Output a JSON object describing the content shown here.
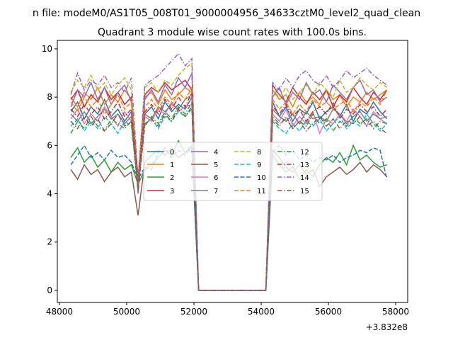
{
  "chart_data": {
    "type": "line",
    "suptitle": "n file: modeM0/AS1T05_008T01_9000004956_34633cztM0_level2_quad_clean",
    "title": "Quadrant 3 module wise count rates with 100.0s bins.",
    "xlabel": "",
    "ylabel": "",
    "x_offset_label": "+3.832e8",
    "xlim": [
      47937,
      58358
    ],
    "ylim": [
      -0.5,
      10.35
    ],
    "xticks": [
      48000,
      50000,
      52000,
      54000,
      56000,
      58000
    ],
    "yticks": [
      0,
      2,
      4,
      6,
      8,
      10
    ],
    "xtick_labels": [
      "48000",
      "50000",
      "52000",
      "54000",
      "56000",
      "58000"
    ],
    "ytick_labels": [
      "0",
      "2",
      "4",
      "6",
      "8",
      "10"
    ],
    "grid": false,
    "legend_placement": "center",
    "x_start": 48340,
    "x_step": 200,
    "series": [
      {
        "name": "0",
        "color": "#1f77b4",
        "style": "solid",
        "values": [
          7.4,
          7.8,
          7.1,
          7.6,
          7.3,
          7.9,
          7.2,
          7.5,
          7.0,
          7.4,
          4.2,
          7.3,
          7.6,
          7.1,
          7.8,
          7.4,
          7.7,
          7.5,
          8.0,
          0,
          0,
          0,
          0,
          0,
          0,
          0,
          0,
          0,
          0,
          0,
          7.8,
          7.2,
          7.6,
          7.0,
          7.5,
          7.3,
          7.8,
          7.1,
          7.4,
          7.6,
          7.2,
          7.7,
          7.0,
          7.5,
          7.3,
          7.8,
          7.4,
          7.1
        ]
      },
      {
        "name": "1",
        "color": "#ff7f0e",
        "style": "solid",
        "values": [
          8.0,
          7.6,
          8.2,
          7.9,
          8.4,
          7.7,
          8.1,
          7.8,
          8.3,
          7.9,
          4.5,
          8.0,
          8.2,
          7.7,
          8.3,
          7.9,
          8.1,
          8.4,
          8.2,
          0,
          0,
          0,
          0,
          0,
          0,
          0,
          0,
          0,
          0,
          0,
          8.3,
          7.9,
          8.1,
          7.6,
          8.2,
          7.8,
          8.0,
          7.7,
          8.3,
          7.9,
          8.1,
          7.6,
          8.0,
          7.8,
          8.2,
          7.9,
          8.1,
          8.3
        ]
      },
      {
        "name": "2",
        "color": "#2ca02c",
        "style": "solid",
        "values": [
          5.5,
          5.9,
          5.3,
          5.6,
          5.1,
          5.4,
          4.9,
          5.3,
          5.0,
          5.2,
          4.4,
          5.0,
          5.2,
          5.5,
          5.8,
          5.6,
          6.2,
          5.7,
          6.0,
          0,
          0,
          0,
          0,
          0,
          0,
          0,
          0,
          0,
          0,
          0,
          5.6,
          5.2,
          4.9,
          5.1,
          4.6,
          5.0,
          4.7,
          5.2,
          5.5,
          5.3,
          5.7,
          5.2,
          6.0,
          5.4,
          5.6,
          5.3,
          5.1,
          5.2
        ]
      },
      {
        "name": "3",
        "color": "#d62728",
        "style": "solid",
        "values": [
          7.9,
          8.3,
          7.6,
          8.1,
          7.8,
          8.4,
          7.9,
          8.2,
          7.7,
          8.0,
          4.6,
          8.1,
          8.4,
          8.2,
          8.6,
          8.3,
          8.5,
          8.7,
          8.3,
          0,
          0,
          0,
          0,
          0,
          0,
          0,
          0,
          0,
          0,
          0,
          8.5,
          8.1,
          7.8,
          8.4,
          8.0,
          7.7,
          8.2,
          7.9,
          8.3,
          7.6,
          8.1,
          7.8,
          8.4,
          8.0,
          7.7,
          8.2,
          7.9,
          8.3
        ]
      },
      {
        "name": "4",
        "color": "#9467bd",
        "style": "solid",
        "values": [
          7.6,
          8.3,
          8.0,
          8.6,
          7.9,
          8.4,
          7.7,
          8.2,
          8.5,
          7.8,
          4.0,
          7.9,
          8.3,
          7.8,
          8.5,
          8.1,
          8.8,
          8.4,
          9.0,
          0,
          0,
          0,
          0,
          0,
          0,
          0,
          0,
          0,
          0,
          0,
          8.0,
          8.4,
          7.7,
          8.2,
          7.9,
          8.6,
          8.1,
          8.3,
          7.8,
          8.5,
          8.2,
          7.9,
          8.4,
          8.7,
          8.1,
          8.3,
          7.8,
          8.0
        ]
      },
      {
        "name": "5",
        "color": "#8c564b",
        "style": "solid",
        "values": [
          5.0,
          4.6,
          5.2,
          4.8,
          5.0,
          4.5,
          4.9,
          5.1,
          4.7,
          4.9,
          3.1,
          5.3,
          5.6,
          5.8,
          5.6,
          5.9,
          5.5,
          5.7,
          5.9,
          0,
          0,
          0,
          0,
          0,
          0,
          0,
          0,
          0,
          0,
          0,
          5.8,
          5.5,
          5.1,
          4.9,
          5.2,
          4.8,
          5.0,
          4.3,
          4.7,
          4.9,
          5.1,
          4.8,
          5.0,
          5.3,
          4.9,
          5.2,
          5.0,
          4.7
        ]
      },
      {
        "name": "6",
        "color": "#e377c2",
        "style": "solid",
        "values": [
          7.1,
          7.5,
          6.9,
          7.3,
          7.0,
          7.6,
          7.2,
          6.8,
          7.4,
          7.0,
          4.3,
          7.2,
          7.0,
          7.5,
          7.3,
          7.8,
          7.4,
          7.6,
          7.7,
          0,
          0,
          0,
          0,
          0,
          0,
          0,
          0,
          0,
          0,
          0,
          7.3,
          7.0,
          7.5,
          6.8,
          7.2,
          6.9,
          7.4,
          6.5,
          7.1,
          6.9,
          7.3,
          7.0,
          7.5,
          7.2,
          6.8,
          7.4,
          7.1,
          6.9
        ]
      },
      {
        "name": "7",
        "color": "#7f7f7f",
        "style": "solid",
        "values": [
          7.3,
          7.0,
          7.4,
          6.9,
          7.2,
          7.5,
          7.1,
          7.3,
          6.9,
          7.2,
          4.5,
          7.3,
          7.1,
          7.6,
          7.4,
          7.7,
          7.5,
          7.9,
          8.1,
          0,
          0,
          0,
          0,
          0,
          0,
          0,
          0,
          0,
          0,
          0,
          7.5,
          7.2,
          7.0,
          7.3,
          6.9,
          7.4,
          7.1,
          7.2,
          7.0,
          7.5,
          7.3,
          6.9,
          7.2,
          7.4,
          7.0,
          7.3,
          7.1,
          7.2
        ]
      },
      {
        "name": "8",
        "color": "#bcbd22",
        "style": "dashed",
        "values": [
          8.2,
          8.7,
          8.4,
          8.9,
          8.3,
          8.6,
          8.1,
          8.5,
          8.8,
          8.3,
          4.7,
          8.4,
          8.6,
          8.2,
          8.7,
          8.5,
          8.9,
          9.2,
          9.4,
          0,
          0,
          0,
          0,
          0,
          0,
          0,
          0,
          0,
          0,
          0,
          8.3,
          8.0,
          8.4,
          7.9,
          8.2,
          8.5,
          8.1,
          8.6,
          8.3,
          8.0,
          8.7,
          8.2,
          8.4,
          8.8,
          8.5,
          8.3,
          8.6,
          8.4
        ]
      },
      {
        "name": "9",
        "color": "#17becf",
        "style": "dashed",
        "values": [
          6.8,
          7.1,
          6.6,
          7.0,
          6.7,
          7.2,
          6.9,
          6.5,
          7.0,
          6.8,
          4.3,
          6.9,
          7.1,
          6.7,
          7.2,
          7.0,
          7.4,
          7.2,
          7.5,
          0,
          0,
          0,
          0,
          0,
          0,
          0,
          0,
          0,
          0,
          0,
          7.0,
          6.7,
          6.5,
          6.9,
          6.6,
          7.0,
          6.8,
          7.1,
          6.6,
          6.9,
          7.2,
          6.7,
          7.0,
          6.8,
          7.3,
          6.9,
          6.6,
          6.9
        ]
      },
      {
        "name": "10",
        "color": "#1f77b4",
        "style": "dashed",
        "values": [
          5.2,
          5.6,
          6.0,
          5.5,
          5.7,
          5.4,
          5.8,
          5.5,
          5.6,
          5.3,
          4.6,
          5.1,
          5.0,
          5.7,
          5.9,
          5.5,
          5.8,
          5.6,
          5.9,
          0,
          0,
          0,
          0,
          0,
          0,
          0,
          0,
          0,
          0,
          0,
          5.7,
          6.0,
          5.6,
          5.8,
          5.4,
          5.6,
          5.3,
          5.5,
          5.4,
          5.6,
          5.3,
          5.5,
          5.6,
          5.8,
          5.7,
          5.9,
          5.8,
          4.6
        ]
      },
      {
        "name": "11",
        "color": "#ff7f0e",
        "style": "dashed",
        "values": [
          7.8,
          7.4,
          8.0,
          7.6,
          7.9,
          7.3,
          7.7,
          8.1,
          7.5,
          7.8,
          4.4,
          7.6,
          7.9,
          7.5,
          8.0,
          7.7,
          8.2,
          7.9,
          8.4,
          0,
          0,
          0,
          0,
          0,
          0,
          0,
          0,
          0,
          0,
          0,
          7.9,
          7.5,
          7.8,
          7.3,
          7.7,
          7.4,
          7.9,
          7.6,
          7.8,
          7.5,
          7.7,
          7.9,
          7.4,
          7.8,
          7.6,
          8.0,
          7.7,
          8.3
        ]
      },
      {
        "name": "12",
        "color": "#2ca02c",
        "style": "dashdot",
        "values": [
          6.5,
          7.0,
          6.7,
          7.2,
          6.8,
          6.6,
          7.1,
          6.9,
          6.7,
          7.0,
          4.2,
          6.8,
          7.2,
          6.9,
          7.4,
          7.1,
          7.6,
          7.3,
          7.8,
          0,
          0,
          0,
          0,
          0,
          0,
          0,
          0,
          0,
          0,
          0,
          7.2,
          6.9,
          7.1,
          6.7,
          7.0,
          6.8,
          7.3,
          6.9,
          7.1,
          6.6,
          7.0,
          6.8,
          7.2,
          6.9,
          7.1,
          6.7,
          7.0,
          6.9
        ]
      },
      {
        "name": "13",
        "color": "#d62728",
        "style": "dashdot",
        "values": [
          7.5,
          7.2,
          7.7,
          7.3,
          7.6,
          7.1,
          7.4,
          7.8,
          7.2,
          7.5,
          4.5,
          7.4,
          7.7,
          7.3,
          7.9,
          7.5,
          8.0,
          7.6,
          8.2,
          0,
          0,
          0,
          0,
          0,
          0,
          0,
          0,
          0,
          0,
          0,
          7.6,
          7.3,
          7.7,
          7.2,
          7.5,
          7.0,
          7.4,
          7.6,
          7.3,
          7.8,
          7.1,
          7.5,
          7.3,
          7.7,
          7.4,
          7.6,
          7.2,
          7.5
        ]
      },
      {
        "name": "14",
        "color": "#9467bd",
        "style": "dashdot",
        "values": [
          8.1,
          9.0,
          8.3,
          8.7,
          8.5,
          8.9,
          8.4,
          8.6,
          8.2,
          8.8,
          4.6,
          8.5,
          8.7,
          8.9,
          9.2,
          9.5,
          9.8,
          9.3,
          9.6,
          0,
          0,
          0,
          0,
          0,
          0,
          0,
          0,
          0,
          0,
          0,
          8.6,
          8.3,
          8.8,
          8.4,
          8.9,
          9.1,
          8.7,
          8.5,
          8.9,
          8.4,
          8.7,
          9.1,
          8.8,
          9.0,
          9.2,
          8.9,
          8.7,
          8.5
        ]
      },
      {
        "name": "15",
        "color": "#8c564b",
        "style": "dashdot",
        "values": [
          7.0,
          6.7,
          7.2,
          6.8,
          7.1,
          6.6,
          6.9,
          7.3,
          6.8,
          7.0,
          4.1,
          6.9,
          7.1,
          6.8,
          7.3,
          7.0,
          7.5,
          7.2,
          7.6,
          0,
          0,
          0,
          0,
          0,
          0,
          0,
          0,
          0,
          0,
          0,
          7.1,
          6.8,
          7.2,
          6.7,
          7.0,
          6.6,
          6.9,
          7.2,
          6.8,
          7.1,
          6.7,
          7.0,
          6.9,
          7.2,
          6.8,
          7.0,
          6.7,
          6.5
        ]
      }
    ]
  }
}
